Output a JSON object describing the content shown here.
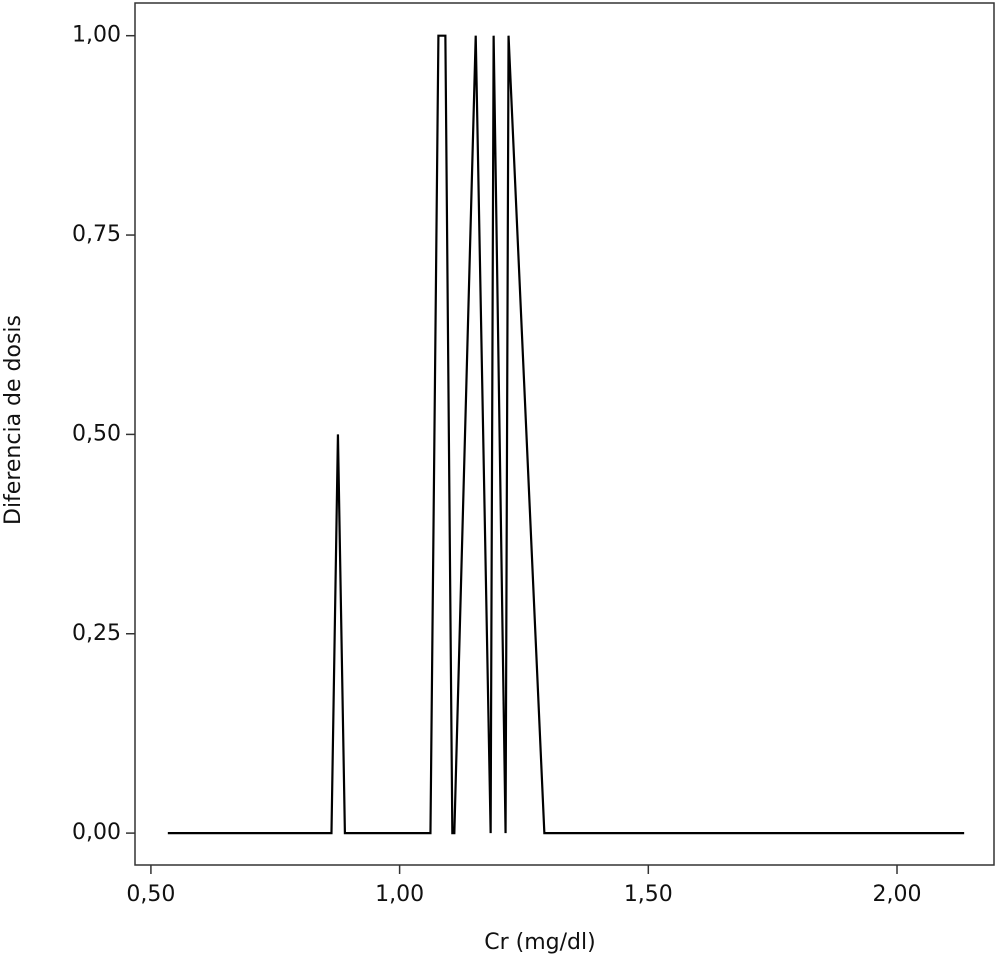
{
  "chart_data": {
    "type": "line",
    "x_label": "Cr (mg/dl)",
    "y_label": "Diferencia de dosis",
    "x": [
      0.534,
      0.863,
      0.876,
      0.89,
      1.062,
      1.078,
      1.092,
      1.106,
      1.11,
      1.153,
      1.183,
      1.189,
      1.213,
      1.219,
      1.291,
      2.135
    ],
    "series": [
      {
        "color": "#000000",
        "values": [
          0,
          0,
          0.5,
          0,
          0,
          1,
          1,
          0,
          0,
          1,
          0,
          1,
          0,
          1,
          0,
          0
        ]
      }
    ],
    "xlim": [
      0.468,
      2.195
    ],
    "xticks": [
      {
        "value": 0.5,
        "label": "0,50"
      },
      {
        "value": 1.0,
        "label": "1,00"
      },
      {
        "value": 1.5,
        "label": "1,50"
      },
      {
        "value": 2.0,
        "label": "2,00"
      }
    ],
    "ylim": [
      -0.04,
      1.041
    ],
    "yticks": [
      {
        "value": 0,
        "label": "0,00"
      },
      {
        "value": 0.25,
        "label": "0,25"
      },
      {
        "value": 0.5,
        "label": "0,50"
      },
      {
        "value": 0.75,
        "label": "0,75"
      },
      {
        "value": 1.0,
        "label": "1,00"
      }
    ]
  }
}
